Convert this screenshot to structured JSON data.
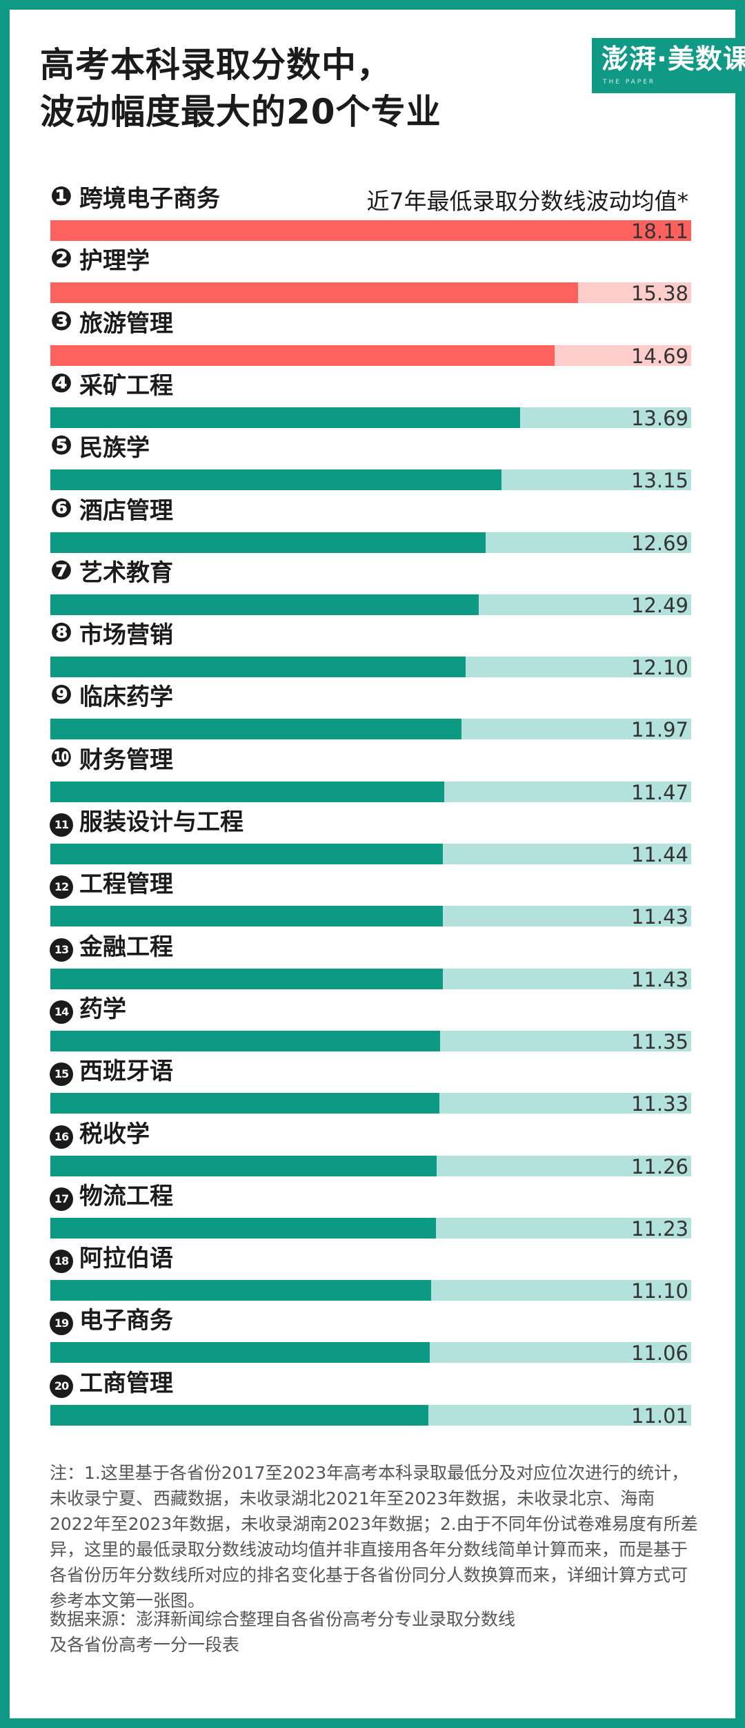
{
  "header": {
    "title_line1": "高考本科录取分数中，",
    "title_line2": "波动幅度最大的20个专业",
    "logo": "澎湃·美数课",
    "logo_sub": "THE PAPER"
  },
  "colors": {
    "top_fill": "#fd625e",
    "top_track": "#fdcdcb",
    "fill": "#0d9a85",
    "track": "#b3e1dc",
    "frame": "#109a86"
  },
  "chart_data": {
    "type": "bar",
    "orientation": "horizontal",
    "title": "高考本科录取分数中，波动幅度最大的20个专业",
    "value_label": "近7年最低录取分数线波动均值*",
    "xlim": [
      0,
      18.11
    ],
    "highlight_top_n": 3,
    "categories": [
      "跨境电子商务",
      "护理学",
      "旅游管理",
      "采矿工程",
      "民族学",
      "酒店管理",
      "艺术教育",
      "市场营销",
      "临床药学",
      "财务管理",
      "服装设计与工程",
      "工程管理",
      "金融工程",
      "药学",
      "西班牙语",
      "税收学",
      "物流工程",
      "阿拉伯语",
      "电子商务",
      "工商管理"
    ],
    "ranks": [
      "❶",
      "❷",
      "❸",
      "❹",
      "❺",
      "❻",
      "❼",
      "❽",
      "❾",
      "❿",
      "11",
      "12",
      "13",
      "14",
      "15",
      "16",
      "17",
      "18",
      "19",
      "20"
    ],
    "values": [
      18.11,
      15.38,
      14.69,
      13.69,
      13.15,
      12.69,
      12.49,
      12.1,
      11.97,
      11.47,
      11.44,
      11.43,
      11.43,
      11.35,
      11.33,
      11.26,
      11.23,
      11.1,
      11.06,
      11.01
    ],
    "value_labels": [
      "18.11",
      "15.38",
      "14.69",
      "13.69",
      "13.15",
      "12.69",
      "12.49",
      "12.10",
      "11.97",
      "11.47",
      "11.44",
      "11.43",
      "11.43",
      "11.35",
      "11.33",
      "11.26",
      "11.23",
      "11.10",
      "11.06",
      "11.01"
    ]
  },
  "footer": {
    "note": "注：1.这里基于各省份2017至2023年高考本科录取最低分及对应位次进行的统计，未收录宁夏、西藏数据，未收录湖北2021年至2023年数据，未收录北京、海南2022年至2023年数据，未收录湖南2023年数据；2.由于不同年份试卷难易度有所差异，这里的最低录取分数线波动均值并非直接用各年分数线简单计算而来，而是基于各省份历年分数线所对应的排名变化基于各省份同分人数换算而来，详细计算方式可参考本文第一张图。",
    "source": "数据来源：澎湃新闻综合整理自各省份高考分专业录取分数线及各省份高考一分一段表"
  }
}
